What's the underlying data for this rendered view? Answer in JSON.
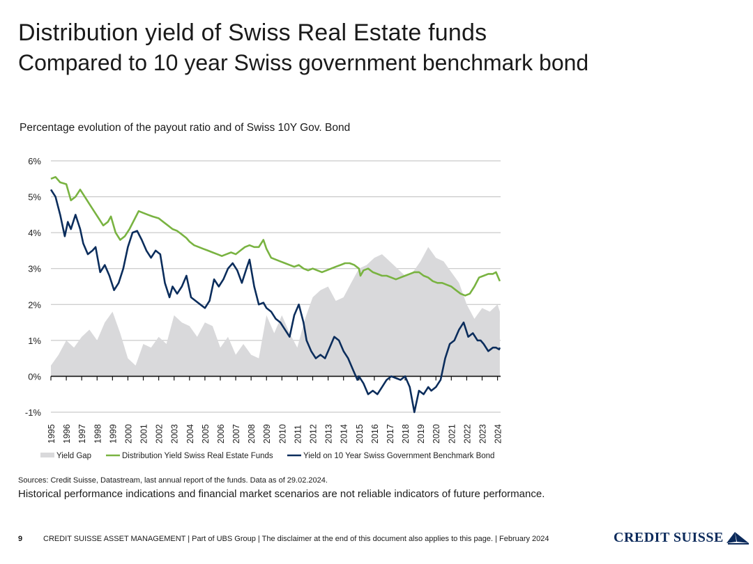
{
  "header": {
    "title": "Distribution yield of Swiss Real Estate funds",
    "subtitle": "Compared to 10 year Swiss government benchmark bond"
  },
  "chart_caption": "Percentage evolution of the payout ratio and of Swiss 10Y Gov. Bond",
  "chart_data": {
    "type": "line",
    "title": "Percentage evolution of the payout ratio and of Swiss 10Y Gov. Bond",
    "xlabel": "",
    "ylabel": "",
    "ylim": [
      -1,
      6
    ],
    "xlim": [
      1995,
      2024.2
    ],
    "yticks": [
      -1,
      0,
      1,
      2,
      3,
      4,
      5,
      6
    ],
    "ytick_labels": [
      "-1%",
      "0%",
      "1%",
      "2%",
      "3%",
      "4%",
      "5%",
      "6%"
    ],
    "xtick_labels": [
      "1995",
      "1996",
      "1997",
      "1998",
      "1999",
      "2000",
      "2001",
      "2002",
      "2003",
      "2004",
      "2005",
      "2006",
      "2007",
      "2008",
      "2009",
      "2010",
      "2011",
      "2012",
      "2013",
      "2014",
      "2015",
      "2016",
      "2017",
      "2018",
      "2019",
      "2020",
      "2021",
      "2022",
      "2023",
      "2024"
    ],
    "grid": true,
    "legend_position": "bottom",
    "colors": {
      "gap": "#d9d9db",
      "real_estate": "#79b341",
      "bond": "#0b2d5c"
    },
    "series": [
      {
        "name": "Yield Gap",
        "kind": "area",
        "x": [
          1995,
          1995.5,
          1996,
          1996.5,
          1997,
          1997.5,
          1998,
          1998.5,
          1999,
          1999.5,
          2000,
          2000.5,
          2001,
          2001.5,
          2002,
          2002.5,
          2003,
          2003.5,
          2004,
          2004.5,
          2005,
          2005.5,
          2006,
          2006.5,
          2007,
          2007.5,
          2008,
          2008.5,
          2009,
          2009.5,
          2010,
          2010.5,
          2011,
          2011.5,
          2012,
          2012.5,
          2013,
          2013.5,
          2014,
          2014.5,
          2015,
          2015.5,
          2016,
          2016.5,
          2017,
          2017.5,
          2018,
          2018.5,
          2019,
          2019.5,
          2020,
          2020.5,
          2021,
          2021.5,
          2022,
          2022.5,
          2023,
          2023.5,
          2024,
          2024.15
        ],
        "values": [
          0.3,
          0.6,
          1.0,
          0.8,
          1.1,
          1.3,
          1.0,
          1.5,
          1.8,
          1.2,
          0.5,
          0.3,
          0.9,
          0.8,
          1.1,
          0.9,
          1.7,
          1.5,
          1.4,
          1.1,
          1.5,
          1.4,
          0.8,
          1.1,
          0.6,
          0.9,
          0.6,
          0.5,
          1.7,
          1.2,
          1.7,
          1.2,
          0.8,
          1.6,
          2.2,
          2.4,
          2.5,
          2.1,
          2.2,
          2.6,
          3.0,
          3.1,
          3.3,
          3.4,
          3.2,
          3.0,
          2.8,
          2.9,
          3.2,
          3.6,
          3.3,
          3.2,
          2.9,
          2.6,
          2.0,
          1.6,
          1.9,
          1.8,
          2.0,
          1.8
        ]
      },
      {
        "name": "Distribution Yield Swiss Real Estate Funds",
        "kind": "line",
        "x": [
          1995,
          1995.3,
          1995.6,
          1996,
          1996.3,
          1996.6,
          1996.9,
          1997.2,
          1997.5,
          1997.8,
          1998.1,
          1998.4,
          1998.7,
          1998.9,
          1999.2,
          1999.5,
          1999.8,
          2000.1,
          2000.4,
          2000.7,
          2001,
          2001.3,
          2001.6,
          2002,
          2002.3,
          2002.6,
          2002.9,
          2003.2,
          2003.5,
          2003.8,
          2004,
          2004.3,
          2004.6,
          2004.9,
          2005.2,
          2005.5,
          2005.8,
          2006.1,
          2006.4,
          2006.7,
          2007,
          2007.3,
          2007.6,
          2007.9,
          2008.2,
          2008.5,
          2008.8,
          2009,
          2009.3,
          2009.6,
          2009.9,
          2010.2,
          2010.5,
          2010.8,
          2011.1,
          2011.4,
          2011.7,
          2012,
          2012.3,
          2012.6,
          2012.9,
          2013.2,
          2013.5,
          2013.8,
          2014.1,
          2014.4,
          2014.7,
          2015,
          2015.1,
          2015.3,
          2015.6,
          2015.9,
          2016.2,
          2016.5,
          2016.8,
          2017.1,
          2017.4,
          2017.7,
          2018,
          2018.3,
          2018.6,
          2018.9,
          2019.2,
          2019.5,
          2019.8,
          2020.1,
          2020.4,
          2020.7,
          2021,
          2021.3,
          2021.6,
          2021.9,
          2022.2,
          2022.5,
          2022.8,
          2023.1,
          2023.4,
          2023.7,
          2023.9,
          2024.1,
          2024.15
        ],
        "values": [
          5.5,
          5.55,
          5.4,
          5.35,
          4.9,
          5.0,
          5.2,
          5.0,
          4.8,
          4.6,
          4.4,
          4.2,
          4.3,
          4.45,
          4.0,
          3.8,
          3.9,
          4.1,
          4.35,
          4.6,
          4.55,
          4.5,
          4.45,
          4.4,
          4.3,
          4.2,
          4.1,
          4.05,
          3.95,
          3.85,
          3.75,
          3.65,
          3.6,
          3.55,
          3.5,
          3.45,
          3.4,
          3.35,
          3.4,
          3.45,
          3.4,
          3.5,
          3.6,
          3.65,
          3.6,
          3.6,
          3.8,
          3.55,
          3.3,
          3.25,
          3.2,
          3.15,
          3.1,
          3.05,
          3.1,
          3.0,
          2.95,
          3.0,
          2.95,
          2.9,
          2.95,
          3.0,
          3.05,
          3.1,
          3.15,
          3.15,
          3.1,
          3.0,
          2.8,
          2.95,
          3.0,
          2.9,
          2.85,
          2.8,
          2.8,
          2.75,
          2.7,
          2.75,
          2.8,
          2.85,
          2.9,
          2.9,
          2.8,
          2.75,
          2.65,
          2.6,
          2.6,
          2.55,
          2.5,
          2.4,
          2.3,
          2.25,
          2.3,
          2.5,
          2.75,
          2.8,
          2.85,
          2.85,
          2.9,
          2.7,
          2.65
        ]
      },
      {
        "name": "Yield on 10 Year Swiss Government Benchmark Bond",
        "kind": "line",
        "x": [
          1995,
          1995.3,
          1995.6,
          1995.9,
          1996.1,
          1996.3,
          1996.6,
          1996.9,
          1997.1,
          1997.4,
          1997.7,
          1997.9,
          1998.2,
          1998.5,
          1998.8,
          1999.1,
          1999.4,
          1999.7,
          2000,
          2000.3,
          2000.6,
          2000.9,
          2001.2,
          2001.5,
          2001.8,
          2002.1,
          2002.4,
          2002.7,
          2002.9,
          2003.2,
          2003.5,
          2003.8,
          2004.1,
          2004.4,
          2004.7,
          2005,
          2005.3,
          2005.6,
          2005.9,
          2006.2,
          2006.5,
          2006.8,
          2007.1,
          2007.4,
          2007.7,
          2007.9,
          2008.2,
          2008.5,
          2008.8,
          2009,
          2009.3,
          2009.6,
          2009.9,
          2010.2,
          2010.5,
          2010.8,
          2011.1,
          2011.4,
          2011.6,
          2011.9,
          2012.2,
          2012.5,
          2012.8,
          2013.1,
          2013.4,
          2013.7,
          2014,
          2014.3,
          2014.6,
          2014.9,
          2015,
          2015.3,
          2015.6,
          2015.9,
          2016.2,
          2016.5,
          2016.8,
          2017.1,
          2017.4,
          2017.7,
          2018,
          2018.3,
          2018.6,
          2018.9,
          2019.2,
          2019.5,
          2019.7,
          2020,
          2020.3,
          2020.6,
          2020.9,
          2021.2,
          2021.5,
          2021.8,
          2022.1,
          2022.4,
          2022.7,
          2022.9,
          2023.1,
          2023.4,
          2023.7,
          2023.9,
          2024.1,
          2024.15
        ],
        "values": [
          5.2,
          5.0,
          4.5,
          3.9,
          4.3,
          4.1,
          4.5,
          4.1,
          3.7,
          3.4,
          3.5,
          3.6,
          2.9,
          3.1,
          2.8,
          2.4,
          2.6,
          3.0,
          3.6,
          4.0,
          4.05,
          3.8,
          3.5,
          3.3,
          3.5,
          3.4,
          2.6,
          2.2,
          2.5,
          2.3,
          2.5,
          2.8,
          2.2,
          2.1,
          2.0,
          1.9,
          2.1,
          2.7,
          2.5,
          2.7,
          3.0,
          3.15,
          2.95,
          2.6,
          3.0,
          3.25,
          2.5,
          2.0,
          2.05,
          1.9,
          1.8,
          1.6,
          1.5,
          1.3,
          1.1,
          1.7,
          2.0,
          1.5,
          1.0,
          0.7,
          0.5,
          0.6,
          0.5,
          0.8,
          1.1,
          1.0,
          0.7,
          0.5,
          0.2,
          -0.1,
          0.0,
          -0.2,
          -0.5,
          -0.4,
          -0.5,
          -0.3,
          -0.1,
          0.0,
          -0.05,
          -0.1,
          0.0,
          -0.3,
          -1.0,
          -0.4,
          -0.5,
          -0.3,
          -0.4,
          -0.3,
          -0.1,
          0.5,
          0.9,
          1.0,
          1.3,
          1.5,
          1.1,
          1.2,
          1.0,
          1.0,
          0.9,
          0.7,
          0.8,
          0.8,
          0.75,
          0.8
        ]
      }
    ]
  },
  "legend": {
    "items": [
      {
        "label": "Yield Gap"
      },
      {
        "label": "Distribution Yield Swiss Real Estate Funds"
      },
      {
        "label": "Yield on 10 Year Swiss Government Benchmark Bond"
      }
    ]
  },
  "sources": "Sources: Credit Suisse, Datastream, last annual report of the funds. Data as of 29.02.2024.",
  "disclaimer": "Historical performance indications and financial market scenarios are not reliable indicators of future performance.",
  "footer": {
    "page_number": "9",
    "text": "CREDIT SUISSE ASSET MANAGEMENT | Part of UBS Group | The disclaimer at the end of this document also applies to this page. | February 2024",
    "logo_text": "CREDIT SUISSE"
  }
}
